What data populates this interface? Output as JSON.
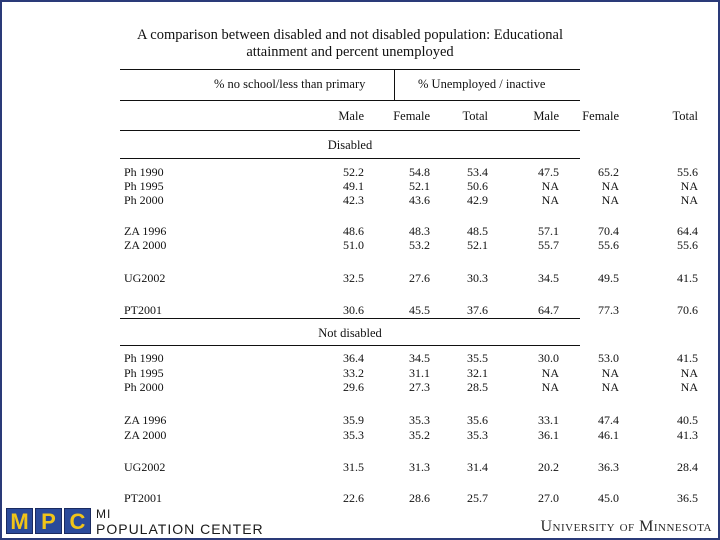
{
  "title_line1": "A comparison between disabled and not disabled population: Educational",
  "title_line2": "attainment and percent unemployed",
  "group_headers": {
    "left": "% no school/less than primary",
    "right": "% Unemployed / inactive"
  },
  "columns": [
    "Male",
    "Female",
    "Total",
    "Male",
    "Female",
    "Total"
  ],
  "sections": [
    {
      "label": "Disabled",
      "rows": [
        {
          "label": "Ph 1990",
          "values": [
            "52.2",
            "54.8",
            "53.4",
            "47.5",
            "65.2",
            "55.6"
          ]
        },
        {
          "label": "Ph 1995",
          "values": [
            "49.1",
            "52.1",
            "50.6",
            "NA",
            "NA",
            "NA"
          ]
        },
        {
          "label": "Ph 2000",
          "values": [
            "42.3",
            "43.6",
            "42.9",
            "NA",
            "NA",
            "NA"
          ]
        },
        {
          "label": "ZA 1996",
          "values": [
            "48.6",
            "48.3",
            "48.5",
            "57.1",
            "70.4",
            "64.4"
          ]
        },
        {
          "label": "ZA 2000",
          "values": [
            "51.0",
            "53.2",
            "52.1",
            "55.7",
            "55.6",
            "55.6"
          ]
        },
        {
          "label": "UG2002",
          "values": [
            "32.5",
            "27.6",
            "30.3",
            "34.5",
            "49.5",
            "41.5"
          ]
        },
        {
          "label": "PT2001",
          "values": [
            "30.6",
            "45.5",
            "37.6",
            "64.7",
            "77.3",
            "70.6"
          ]
        }
      ]
    },
    {
      "label": "Not disabled",
      "rows": [
        {
          "label": "Ph 1990",
          "values": [
            "36.4",
            "34.5",
            "35.5",
            "30.0",
            "53.0",
            "41.5"
          ]
        },
        {
          "label": "Ph 1995",
          "values": [
            "33.2",
            "31.1",
            "32.1",
            "NA",
            "NA",
            "NA"
          ]
        },
        {
          "label": "Ph 2000",
          "values": [
            "29.6",
            "27.3",
            "28.5",
            "NA",
            "NA",
            "NA"
          ]
        },
        {
          "label": "ZA 1996",
          "values": [
            "35.9",
            "35.3",
            "35.6",
            "33.1",
            "47.4",
            "40.5"
          ]
        },
        {
          "label": "ZA 2000",
          "values": [
            "35.3",
            "35.2",
            "35.3",
            "36.1",
            "46.1",
            "41.3"
          ]
        },
        {
          "label": "UG2002",
          "values": [
            "31.5",
            "31.3",
            "31.4",
            "20.2",
            "36.3",
            "28.4"
          ]
        },
        {
          "label": "PT2001",
          "values": [
            "22.6",
            "28.6",
            "25.7",
            "27.0",
            "45.0",
            "36.5"
          ]
        }
      ]
    }
  ],
  "footer": {
    "logo_letters": [
      "M",
      "P",
      "C"
    ],
    "org_line1": "MI",
    "org_line2": "POPULATION CENTER",
    "university": "University of Minnesota"
  },
  "colors": {
    "frame": "#2a3a78",
    "logo_bg": "#2a4a9a",
    "logo_fg": "#f0c419"
  }
}
